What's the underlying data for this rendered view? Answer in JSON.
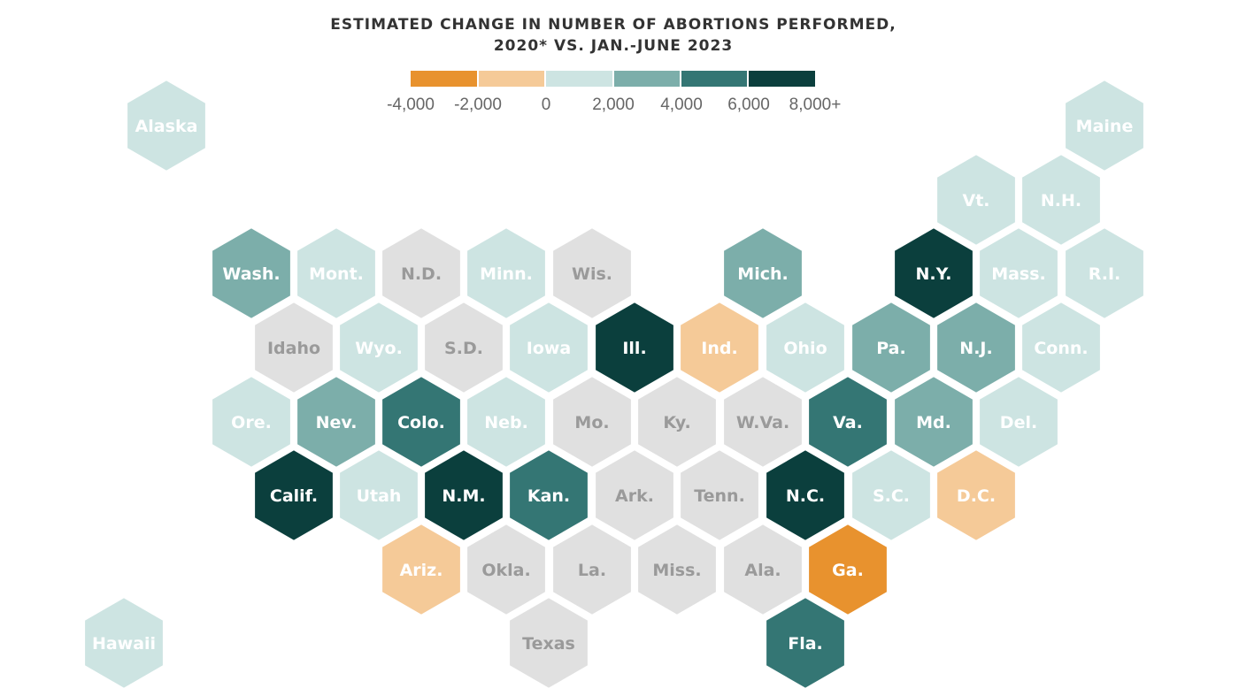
{
  "title": {
    "line1": "ESTIMATED CHANGE IN NUMBER OF ABORTIONS PERFORMED,",
    "line2": "2020* VS. JAN.-JUNE 2023"
  },
  "legend": {
    "colors": [
      "#e8922e",
      "#f5ca98",
      "#cde4e2",
      "#7caeaa",
      "#347674",
      "#0b3f3d"
    ],
    "ticks": [
      "-4,000",
      "-2,000",
      "0",
      "2,000",
      "4,000",
      "6,000",
      "8,000+"
    ]
  },
  "no_data_color": "#e0e0e0",
  "chart_data": {
    "type": "hex tile map",
    "legend_bins": [
      {
        "range": "-4,000 to -2,000",
        "color": "#e8922e"
      },
      {
        "range": "-2,000 to 0",
        "color": "#f5ca98"
      },
      {
        "range": "0 to 2,000",
        "color": "#cde4e2"
      },
      {
        "range": "2,000 to 4,000",
        "color": "#7caeaa"
      },
      {
        "range": "4,000 to 6,000",
        "color": "#347674"
      },
      {
        "range": "6,000 to 8,000+",
        "color": "#0b3f3d"
      }
    ],
    "states": [
      {
        "label": "Alaska",
        "bin": 2
      },
      {
        "label": "Maine",
        "bin": 2
      },
      {
        "label": "Vt.",
        "bin": 2
      },
      {
        "label": "N.H.",
        "bin": 2
      },
      {
        "label": "Wash.",
        "bin": 3
      },
      {
        "label": "Mont.",
        "bin": 2
      },
      {
        "label": "N.D.",
        "bin": null
      },
      {
        "label": "Minn.",
        "bin": 2
      },
      {
        "label": "Wis.",
        "bin": null
      },
      {
        "label": "Mich.",
        "bin": 3
      },
      {
        "label": "N.Y.",
        "bin": 5
      },
      {
        "label": "Mass.",
        "bin": 2
      },
      {
        "label": "R.I.",
        "bin": 2
      },
      {
        "label": "Idaho",
        "bin": null
      },
      {
        "label": "Wyo.",
        "bin": 2
      },
      {
        "label": "S.D.",
        "bin": null
      },
      {
        "label": "Iowa",
        "bin": 2
      },
      {
        "label": "Ill.",
        "bin": 5
      },
      {
        "label": "Ind.",
        "bin": 1
      },
      {
        "label": "Ohio",
        "bin": 2
      },
      {
        "label": "Pa.",
        "bin": 3
      },
      {
        "label": "N.J.",
        "bin": 3
      },
      {
        "label": "Conn.",
        "bin": 2
      },
      {
        "label": "Ore.",
        "bin": 2
      },
      {
        "label": "Nev.",
        "bin": 3
      },
      {
        "label": "Colo.",
        "bin": 4
      },
      {
        "label": "Neb.",
        "bin": 2
      },
      {
        "label": "Mo.",
        "bin": null
      },
      {
        "label": "Ky.",
        "bin": null
      },
      {
        "label": "W.Va.",
        "bin": null
      },
      {
        "label": "Va.",
        "bin": 4
      },
      {
        "label": "Md.",
        "bin": 3
      },
      {
        "label": "Del.",
        "bin": 2
      },
      {
        "label": "Calif.",
        "bin": 5
      },
      {
        "label": "Utah",
        "bin": 2
      },
      {
        "label": "N.M.",
        "bin": 5
      },
      {
        "label": "Kan.",
        "bin": 4
      },
      {
        "label": "Ark.",
        "bin": null
      },
      {
        "label": "Tenn.",
        "bin": null
      },
      {
        "label": "N.C.",
        "bin": 5
      },
      {
        "label": "S.C.",
        "bin": 2
      },
      {
        "label": "D.C.",
        "bin": 1
      },
      {
        "label": "Ariz.",
        "bin": 1
      },
      {
        "label": "Okla.",
        "bin": null
      },
      {
        "label": "La.",
        "bin": null
      },
      {
        "label": "Miss.",
        "bin": null
      },
      {
        "label": "Ala.",
        "bin": null
      },
      {
        "label": "Ga.",
        "bin": 0
      },
      {
        "label": "Hawaii",
        "bin": 2
      },
      {
        "label": "Texas",
        "bin": null
      },
      {
        "label": "Fla.",
        "bin": 4
      }
    ]
  }
}
